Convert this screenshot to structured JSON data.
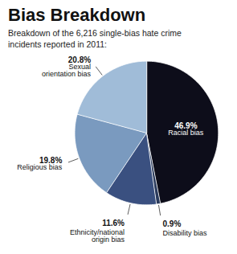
{
  "chart_data": {
    "type": "pie",
    "title": "Bias Breakdown",
    "subtitle": "Breakdown of the 6,216 single-bias hate crime\nincidents reported in 2011:",
    "categories": [
      "Racial bias",
      "Disability bias",
      "Ethnicity/national\norigin bias",
      "Religious bias",
      "Sexual\norientation bias"
    ],
    "values": [
      46.9,
      0.9,
      11.6,
      19.8,
      20.8
    ],
    "value_labels": [
      "46.9%",
      "0.9%",
      "11.6%",
      "19.8%",
      "20.8%"
    ],
    "colors": [
      "#0d0d1a",
      "#2a3a5c",
      "#3a5080",
      "#7a9abf",
      "#a0bcd8"
    ],
    "data_labels": true
  }
}
